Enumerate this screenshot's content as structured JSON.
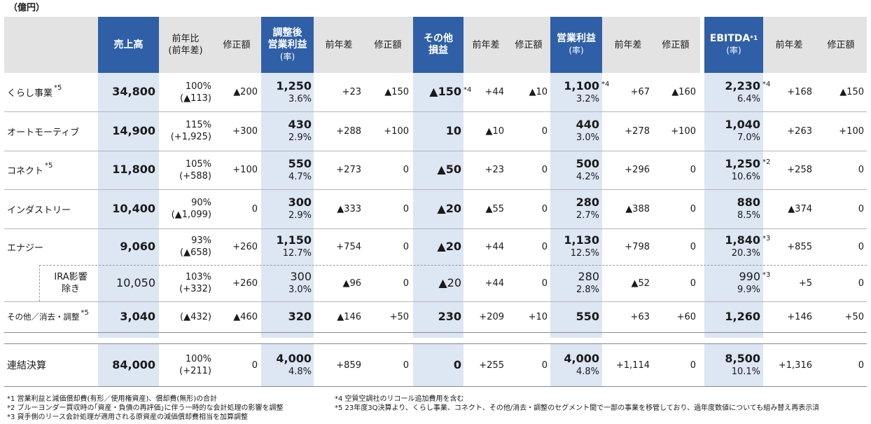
{
  "unit_label": "（億円）",
  "header": {
    "sales": "売上高",
    "yoy_ratio": [
      "前年比",
      "(前年差)"
    ],
    "revision": "修正額",
    "adj_op": [
      "調整後",
      "営業利益",
      "(率)"
    ],
    "yoy_diff": "前年差",
    "other": [
      "その他",
      "損益"
    ],
    "op": [
      "営業利益",
      "(率)"
    ],
    "ebitda": [
      "EBITDA",
      "*1",
      "(率)"
    ]
  },
  "rows": [
    {
      "name": "くらし事業",
      "note": "*5",
      "sales": "34,800",
      "yoy_pct": "100%",
      "yoy_diff": "(▲113)",
      "rev": "▲200",
      "adj": "1,250",
      "adj_rate": "3.6%",
      "adj_diff": "+23",
      "adj_rev": "▲150",
      "oth": "▲150",
      "oth_note": "*4",
      "oth_diff": "+44",
      "oth_rev": "▲10",
      "op": "1,100",
      "op_note": "*4",
      "op_rate": "3.2%",
      "op_diff": "+67",
      "op_rev": "▲160",
      "eb": "2,230",
      "eb_note": "*4",
      "eb_rate": "6.4%",
      "eb_diff": "+168",
      "eb_rev": "▲150"
    },
    {
      "name": "オートモーティブ",
      "note": "",
      "sales": "14,900",
      "yoy_pct": "115%",
      "yoy_diff": "(+1,925)",
      "rev": "+300",
      "adj": "430",
      "adj_rate": "2.9%",
      "adj_diff": "+288",
      "adj_rev": "+100",
      "oth": "10",
      "oth_note": "",
      "oth_diff": "▲10",
      "oth_rev": "0",
      "op": "440",
      "op_note": "",
      "op_rate": "3.0%",
      "op_diff": "+278",
      "op_rev": "+100",
      "eb": "1,040",
      "eb_note": "",
      "eb_rate": "7.0%",
      "eb_diff": "+263",
      "eb_rev": "+100"
    },
    {
      "name": "コネクト",
      "note": "*5",
      "sales": "11,800",
      "yoy_pct": "105%",
      "yoy_diff": "(+588)",
      "rev": "+100",
      "adj": "550",
      "adj_rate": "4.7%",
      "adj_diff": "+273",
      "adj_rev": "0",
      "oth": "▲50",
      "oth_note": "",
      "oth_diff": "+23",
      "oth_rev": "0",
      "op": "500",
      "op_note": "",
      "op_rate": "4.2%",
      "op_diff": "+296",
      "op_rev": "0",
      "eb": "1,250",
      "eb_note": "*2",
      "eb_rate": "10.6%",
      "eb_diff": "+258",
      "eb_rev": "0"
    },
    {
      "name": "インダストリー",
      "note": "",
      "sales": "10,400",
      "yoy_pct": "90%",
      "yoy_diff": "(▲1,099)",
      "rev": "0",
      "adj": "300",
      "adj_rate": "2.9%",
      "adj_diff": "▲333",
      "adj_rev": "0",
      "oth": "▲20",
      "oth_note": "",
      "oth_diff": "▲55",
      "oth_rev": "0",
      "op": "280",
      "op_note": "",
      "op_rate": "2.7%",
      "op_diff": "▲388",
      "op_rev": "0",
      "eb": "880",
      "eb_note": "",
      "eb_rate": "8.5%",
      "eb_diff": "▲374",
      "eb_rev": "0"
    },
    {
      "name": "エナジー",
      "note": "",
      "sales": "9,060",
      "yoy_pct": "93%",
      "yoy_diff": "(▲658)",
      "rev": "+260",
      "adj": "1,150",
      "adj_rate": "12.7%",
      "adj_diff": "+754",
      "adj_rev": "0",
      "oth": "▲20",
      "oth_note": "",
      "oth_diff": "+44",
      "oth_rev": "0",
      "op": "1,130",
      "op_note": "",
      "op_rate": "12.5%",
      "op_diff": "+798",
      "op_rev": "0",
      "eb": "1,840",
      "eb_note": "*3",
      "eb_rate": "20.3%",
      "eb_diff": "+855",
      "eb_rev": "0"
    },
    {
      "name": "IRA影響\n除き",
      "note": "",
      "sub": true,
      "sales": "10,050",
      "yoy_pct": "103%",
      "yoy_diff": "(+332)",
      "rev": "+260",
      "adj": "300",
      "adj_rate": "3.0%",
      "adj_diff": "▲96",
      "adj_rev": "0",
      "oth": "▲20",
      "oth_note": "",
      "oth_diff": "+44",
      "oth_rev": "0",
      "op": "280",
      "op_note": "",
      "op_rate": "2.8%",
      "op_diff": "▲52",
      "op_rev": "0",
      "eb": "990",
      "eb_note": "*3",
      "eb_rate": "9.9%",
      "eb_diff": "+5",
      "eb_rev": "0"
    },
    {
      "name": "その他／消去・調整",
      "note": "*5",
      "small": true,
      "sales": "3,040",
      "yoy_pct": "",
      "yoy_diff": "(▲432)",
      "rev": "▲460",
      "adj": "320",
      "adj_rate": "",
      "adj_diff": "▲146",
      "adj_rev": "+50",
      "oth": "230",
      "oth_note": "",
      "oth_diff": "+209",
      "oth_rev": "+10",
      "op": "550",
      "op_note": "",
      "op_rate": "",
      "op_diff": "+63",
      "op_rev": "+60",
      "eb": "1,260",
      "eb_note": "",
      "eb_rate": "",
      "eb_diff": "+146",
      "eb_rev": "+50"
    },
    {
      "name": "連結決算",
      "note": "",
      "total": true,
      "sales": "84,000",
      "yoy_pct": "100%",
      "yoy_diff": "(+211)",
      "rev": "0",
      "adj": "4,000",
      "adj_rate": "4.8%",
      "adj_diff": "+859",
      "adj_rev": "0",
      "oth": "0",
      "oth_note": "",
      "oth_diff": "+255",
      "oth_rev": "0",
      "op": "4,000",
      "op_note": "",
      "op_rate": "4.8%",
      "op_diff": "+1,114",
      "op_rev": "0",
      "eb": "8,500",
      "eb_note": "",
      "eb_rate": "10.1%",
      "eb_diff": "+1,316",
      "eb_rev": "0"
    }
  ],
  "footnotes": [
    "*1 営業利益と減価償却費(有形／使用権資産)、償却費(無形)の合計",
    "*2 ブルーヨンダー買収時の｢資産・負債の再評価｣に伴う一時的な会計処理の影響を調整",
    "*3 貸手側のリース会計処理が適用される原資産の減価償却費相当を加算調整",
    "*4 空質空調社のリコール追加費用を含む",
    "*5 23年度3Q決算より、くらし事業、コネクト、その他/消去・調整のセグメント間で一部の事業を移管しており、過年度数値についても組み替え再表示済"
  ]
}
